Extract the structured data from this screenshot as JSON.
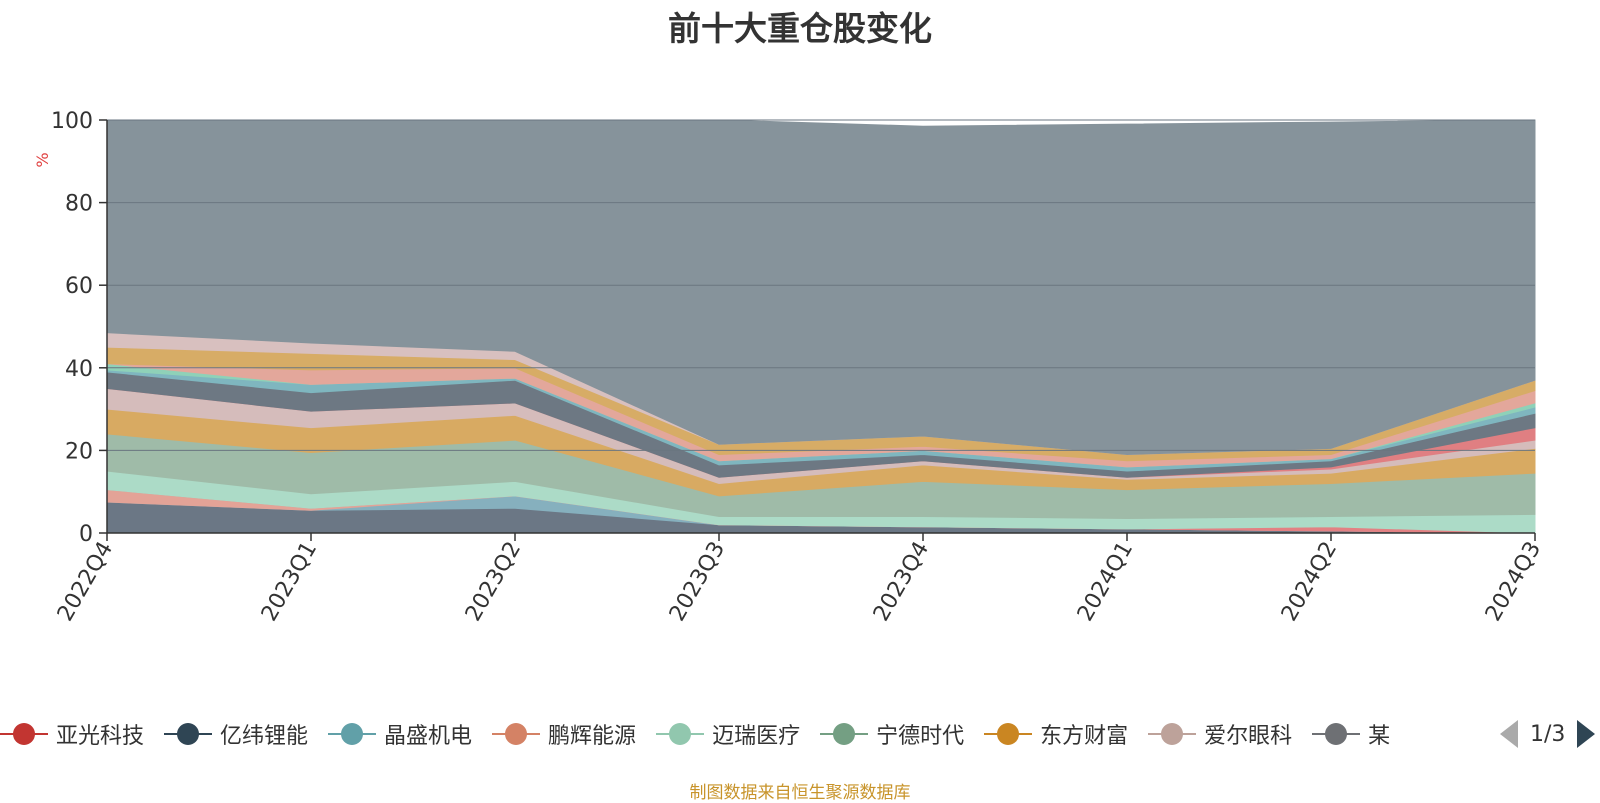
{
  "chart_data": {
    "type": "area",
    "title": "前十大重仓股变化",
    "ylabel": "%",
    "ylim": [
      0,
      100
    ],
    "yticks": [
      0,
      20,
      40,
      60,
      80,
      100
    ],
    "categories": [
      "2022Q4",
      "2023Q1",
      "2023Q2",
      "2023Q3",
      "2023Q4",
      "2024Q1",
      "2024Q2",
      "2024Q3"
    ],
    "stacked": true,
    "grid": true,
    "series": [
      {
        "name": "",
        "color": "#6b7785",
        "values": [
          7.5,
          5.5,
          6,
          2,
          1.5,
          1,
          0.5,
          0
        ]
      },
      {
        "name": "",
        "color": "#86b0be",
        "values": [
          0,
          0,
          3,
          0,
          0,
          0,
          0,
          0
        ]
      },
      {
        "name": "",
        "color": "#e3a397",
        "values": [
          3,
          0.5,
          0,
          0,
          0,
          0,
          0,
          0
        ]
      },
      {
        "name": "",
        "color": "#e28183",
        "values": [
          0,
          0,
          0,
          0,
          0,
          0,
          1,
          0
        ]
      },
      {
        "name": "",
        "color": "#acdbc7",
        "values": [
          4.5,
          3.5,
          3.5,
          2,
          2.5,
          2.5,
          2.5,
          4.5
        ]
      },
      {
        "name": "",
        "color": "#9fbba8",
        "values": [
          9,
          10,
          10,
          5,
          8.5,
          7,
          8,
          10
        ]
      },
      {
        "name": "",
        "color": "#d8aa62",
        "values": [
          6,
          6,
          6,
          3,
          4,
          2.5,
          2.5,
          6
        ]
      },
      {
        "name": "",
        "color": "#d5bcbb",
        "values": [
          5,
          4,
          3,
          1.5,
          1,
          0.5,
          1,
          2
        ]
      },
      {
        "name": "",
        "color": "#e07f82",
        "values": [
          0,
          0,
          0,
          0,
          0,
          0,
          0.5,
          3
        ]
      },
      {
        "name": "",
        "color": "#6d7883",
        "values": [
          4,
          4.5,
          5.5,
          3,
          1.5,
          1.5,
          1.5,
          3.5
        ]
      },
      {
        "name": "",
        "color": "#7fb6bf",
        "values": [
          0.5,
          2,
          0.5,
          1,
          1,
          1,
          0.5,
          1.5
        ]
      },
      {
        "name": "",
        "color": "#8fd1b8",
        "values": [
          1.5,
          0,
          0,
          0,
          0,
          0,
          0,
          1
        ]
      },
      {
        "name": "",
        "color": "#e3a79b",
        "values": [
          0,
          3.5,
          2.5,
          1.5,
          1,
          1.5,
          1,
          3
        ]
      },
      {
        "name": "",
        "color": "#d7ac66",
        "values": [
          4,
          4,
          2,
          2.5,
          2.5,
          1.5,
          1.5,
          2.5
        ]
      },
      {
        "name": "",
        "color": "#d8c0bf",
        "values": [
          3.5,
          2.5,
          2,
          0,
          0,
          0,
          0,
          0
        ]
      },
      {
        "name": "",
        "color": "#86939b",
        "values": [
          51.5,
          54,
          56,
          78.5,
          75,
          80,
          79,
          63
        ]
      }
    ]
  },
  "legend": {
    "items": [
      {
        "label": "亚光科技",
        "color": "#c23531"
      },
      {
        "label": "亿纬锂能",
        "color": "#2f4554"
      },
      {
        "label": "晶盛机电",
        "color": "#61a0a8"
      },
      {
        "label": "鹏辉能源",
        "color": "#d48265"
      },
      {
        "label": "迈瑞医疗",
        "color": "#91c7ae"
      },
      {
        "label": "宁德时代",
        "color": "#749f83"
      },
      {
        "label": "东方财富",
        "color": "#ca8622"
      },
      {
        "label": "爱尔眼科",
        "color": "#bda29a"
      },
      {
        "label": "某",
        "color": "#6e7074"
      }
    ],
    "page_text": "1/3"
  },
  "source_text": "制图数据来自恒生聚源数据库"
}
